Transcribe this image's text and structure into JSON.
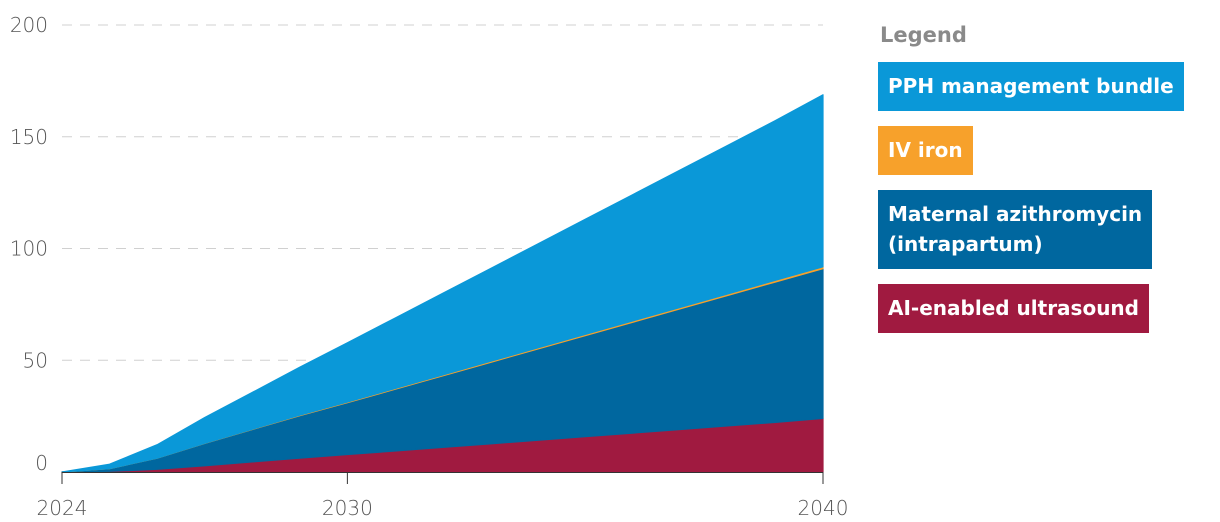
{
  "chart_data": {
    "type": "area",
    "stacked": true,
    "x": [
      2024,
      2025,
      2026,
      2027,
      2028,
      2029,
      2030,
      2031,
      2032,
      2033,
      2034,
      2035,
      2036,
      2037,
      2038,
      2039,
      2040
    ],
    "series": [
      {
        "name": "AI-enabled ultrasound",
        "color": "#a01a40",
        "values": [
          0,
          0.3,
          1.2,
          2.8,
          4.5,
          6.2,
          7.8,
          9.4,
          11,
          12.6,
          14.2,
          15.8,
          17.4,
          19,
          20.6,
          22.2,
          24
        ]
      },
      {
        "name": "Maternal azithromycin\n(intrapartum)",
        "color": "#00679f",
        "values": [
          0,
          1.2,
          5,
          10,
          14.5,
          19,
          23.2,
          27.6,
          32,
          36.4,
          40.8,
          45.2,
          49.6,
          54,
          58.4,
          62.8,
          67
        ]
      },
      {
        "name": "IV iron",
        "color": "#f7a12b",
        "values": [
          0,
          0,
          0,
          0.05,
          0.1,
          0.2,
          0.3,
          0.35,
          0.4,
          0.45,
          0.5,
          0.55,
          0.6,
          0.65,
          0.7,
          0.75,
          0.8
        ]
      },
      {
        "name": "PPH management bundle",
        "color": "#0a98d8",
        "values": [
          0,
          2,
          6,
          11.5,
          16.5,
          21.5,
          26.5,
          31.5,
          36.5,
          41.5,
          46.5,
          51.5,
          56.5,
          61.5,
          66.5,
          71.5,
          77
        ]
      }
    ],
    "xticks": [
      "2024",
      "2030",
      "2040"
    ],
    "yticks": [
      "0",
      "50",
      "100",
      "150",
      "200"
    ],
    "xlim": [
      2024,
      2040
    ],
    "ylim": [
      0,
      200
    ],
    "grid": "horizontal-dashed",
    "legend_title": "Legend",
    "legend_position": "right",
    "legend_order": [
      "PPH management bundle",
      "IV iron",
      "Maternal azithromycin\n(intrapartum)",
      "AI-enabled ultrasound"
    ]
  }
}
